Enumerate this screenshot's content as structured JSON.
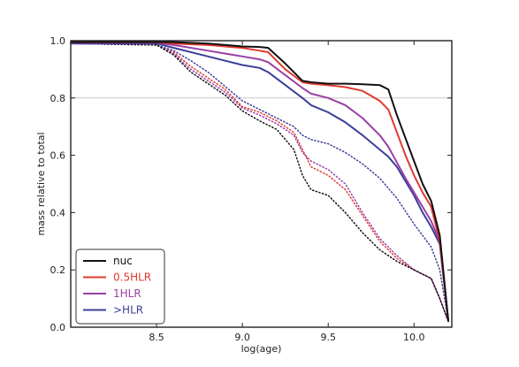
{
  "chart_data": {
    "type": "line",
    "xlabel": "log(age)",
    "ylabel": "mass relative to total",
    "xlim": [
      8.0,
      10.22
    ],
    "ylim": [
      0.0,
      1.0
    ],
    "xticks": [
      "8.5",
      "9.0",
      "9.5",
      "10.0"
    ],
    "xtick_values": [
      8.5,
      9.0,
      9.5,
      10.0
    ],
    "yticks": [
      "0.0",
      "0.2",
      "0.4",
      "0.6",
      "0.8",
      "1.0"
    ],
    "ytick_values": [
      0.0,
      0.2,
      0.4,
      0.6,
      0.8,
      1.0
    ],
    "reference_line": 0.8,
    "legend_position": "lower-left",
    "series": [
      {
        "name": "nuc",
        "color": "#111111",
        "style": "solid",
        "x": [
          8.0,
          8.5,
          8.6,
          8.8,
          9.0,
          9.1,
          9.15,
          9.25,
          9.35,
          9.4,
          9.5,
          9.6,
          9.7,
          9.8,
          9.85,
          9.9,
          9.95,
          10.0,
          10.05,
          10.1,
          10.15,
          10.2
        ],
        "y": [
          0.995,
          0.995,
          0.995,
          0.99,
          0.98,
          0.978,
          0.975,
          0.92,
          0.86,
          0.855,
          0.85,
          0.85,
          0.848,
          0.845,
          0.83,
          0.74,
          0.66,
          0.58,
          0.5,
          0.44,
          0.32,
          0.02
        ]
      },
      {
        "name": "0.5HLR",
        "color": "#e03a2f",
        "style": "solid",
        "x": [
          8.0,
          8.5,
          8.6,
          8.8,
          9.0,
          9.1,
          9.15,
          9.25,
          9.35,
          9.4,
          9.5,
          9.6,
          9.7,
          9.8,
          9.85,
          9.9,
          9.95,
          10.0,
          10.05,
          10.1,
          10.15,
          10.2
        ],
        "y": [
          0.995,
          0.995,
          0.99,
          0.985,
          0.975,
          0.965,
          0.96,
          0.9,
          0.855,
          0.85,
          0.845,
          0.838,
          0.825,
          0.79,
          0.76,
          0.68,
          0.6,
          0.53,
          0.47,
          0.42,
          0.3,
          0.02
        ]
      },
      {
        "name": "1HLR",
        "color": "#9b3fa6",
        "style": "solid",
        "x": [
          8.0,
          8.5,
          8.6,
          8.8,
          9.0,
          9.1,
          9.15,
          9.25,
          9.35,
          9.4,
          9.5,
          9.6,
          9.7,
          9.8,
          9.85,
          9.9,
          9.95,
          10.0,
          10.05,
          10.1,
          10.15,
          10.2
        ],
        "y": [
          0.993,
          0.993,
          0.985,
          0.965,
          0.945,
          0.935,
          0.925,
          0.88,
          0.835,
          0.815,
          0.8,
          0.775,
          0.73,
          0.67,
          0.63,
          0.575,
          0.52,
          0.47,
          0.42,
          0.37,
          0.3,
          0.02
        ]
      },
      {
        "name": ">HLR",
        "color": "#3b3f99",
        "style": "solid",
        "x": [
          8.0,
          8.5,
          8.6,
          8.8,
          9.0,
          9.1,
          9.15,
          9.25,
          9.35,
          9.4,
          9.5,
          9.6,
          9.7,
          9.8,
          9.85,
          9.9,
          9.95,
          10.0,
          10.05,
          10.1,
          10.15,
          10.2
        ],
        "y": [
          0.99,
          0.99,
          0.975,
          0.945,
          0.915,
          0.905,
          0.89,
          0.845,
          0.8,
          0.775,
          0.75,
          0.715,
          0.67,
          0.62,
          0.595,
          0.56,
          0.51,
          0.46,
          0.4,
          0.35,
          0.29,
          0.02
        ]
      },
      {
        "name": "",
        "color": "#e03a2f",
        "style": "dotted",
        "x": [
          8.0,
          8.5,
          8.6,
          8.7,
          8.8,
          8.9,
          9.0,
          9.1,
          9.2,
          9.3,
          9.35,
          9.4,
          9.5,
          9.6,
          9.7,
          9.8,
          9.9,
          10.0,
          10.1,
          10.15,
          10.2
        ],
        "y": [
          0.99,
          0.985,
          0.96,
          0.91,
          0.87,
          0.83,
          0.77,
          0.75,
          0.72,
          0.68,
          0.62,
          0.56,
          0.53,
          0.48,
          0.39,
          0.3,
          0.24,
          0.2,
          0.17,
          0.1,
          0.02
        ]
      },
      {
        "name": "",
        "color": "#9b3fa6",
        "style": "dotted",
        "x": [
          8.0,
          8.5,
          8.6,
          8.7,
          8.8,
          8.9,
          9.0,
          9.1,
          9.2,
          9.3,
          9.35,
          9.4,
          9.5,
          9.6,
          9.7,
          9.8,
          9.9,
          10.0,
          10.1,
          10.15,
          10.2
        ],
        "y": [
          0.99,
          0.985,
          0.955,
          0.9,
          0.86,
          0.82,
          0.765,
          0.74,
          0.71,
          0.67,
          0.61,
          0.58,
          0.55,
          0.5,
          0.4,
          0.31,
          0.25,
          0.2,
          0.17,
          0.1,
          0.02
        ]
      },
      {
        "name": "",
        "color": "#3b3f99",
        "style": "dotted",
        "x": [
          8.0,
          8.5,
          8.6,
          8.7,
          8.8,
          8.9,
          9.0,
          9.1,
          9.2,
          9.3,
          9.35,
          9.4,
          9.5,
          9.6,
          9.7,
          9.8,
          9.9,
          10.0,
          10.1,
          10.15,
          10.2
        ],
        "y": [
          0.99,
          0.985,
          0.965,
          0.93,
          0.89,
          0.84,
          0.79,
          0.76,
          0.73,
          0.7,
          0.67,
          0.655,
          0.64,
          0.61,
          0.57,
          0.52,
          0.45,
          0.36,
          0.28,
          0.2,
          0.02
        ]
      },
      {
        "name": "",
        "color": "#111111",
        "style": "dotted",
        "x": [
          8.0,
          8.5,
          8.6,
          8.7,
          8.8,
          8.9,
          9.0,
          9.1,
          9.2,
          9.3,
          9.35,
          9.4,
          9.5,
          9.6,
          9.7,
          9.8,
          9.9,
          10.0,
          10.1,
          10.15,
          10.2
        ],
        "y": [
          0.99,
          0.985,
          0.95,
          0.89,
          0.85,
          0.81,
          0.755,
          0.72,
          0.69,
          0.62,
          0.53,
          0.48,
          0.46,
          0.4,
          0.33,
          0.27,
          0.23,
          0.2,
          0.17,
          0.1,
          0.02
        ]
      }
    ]
  }
}
